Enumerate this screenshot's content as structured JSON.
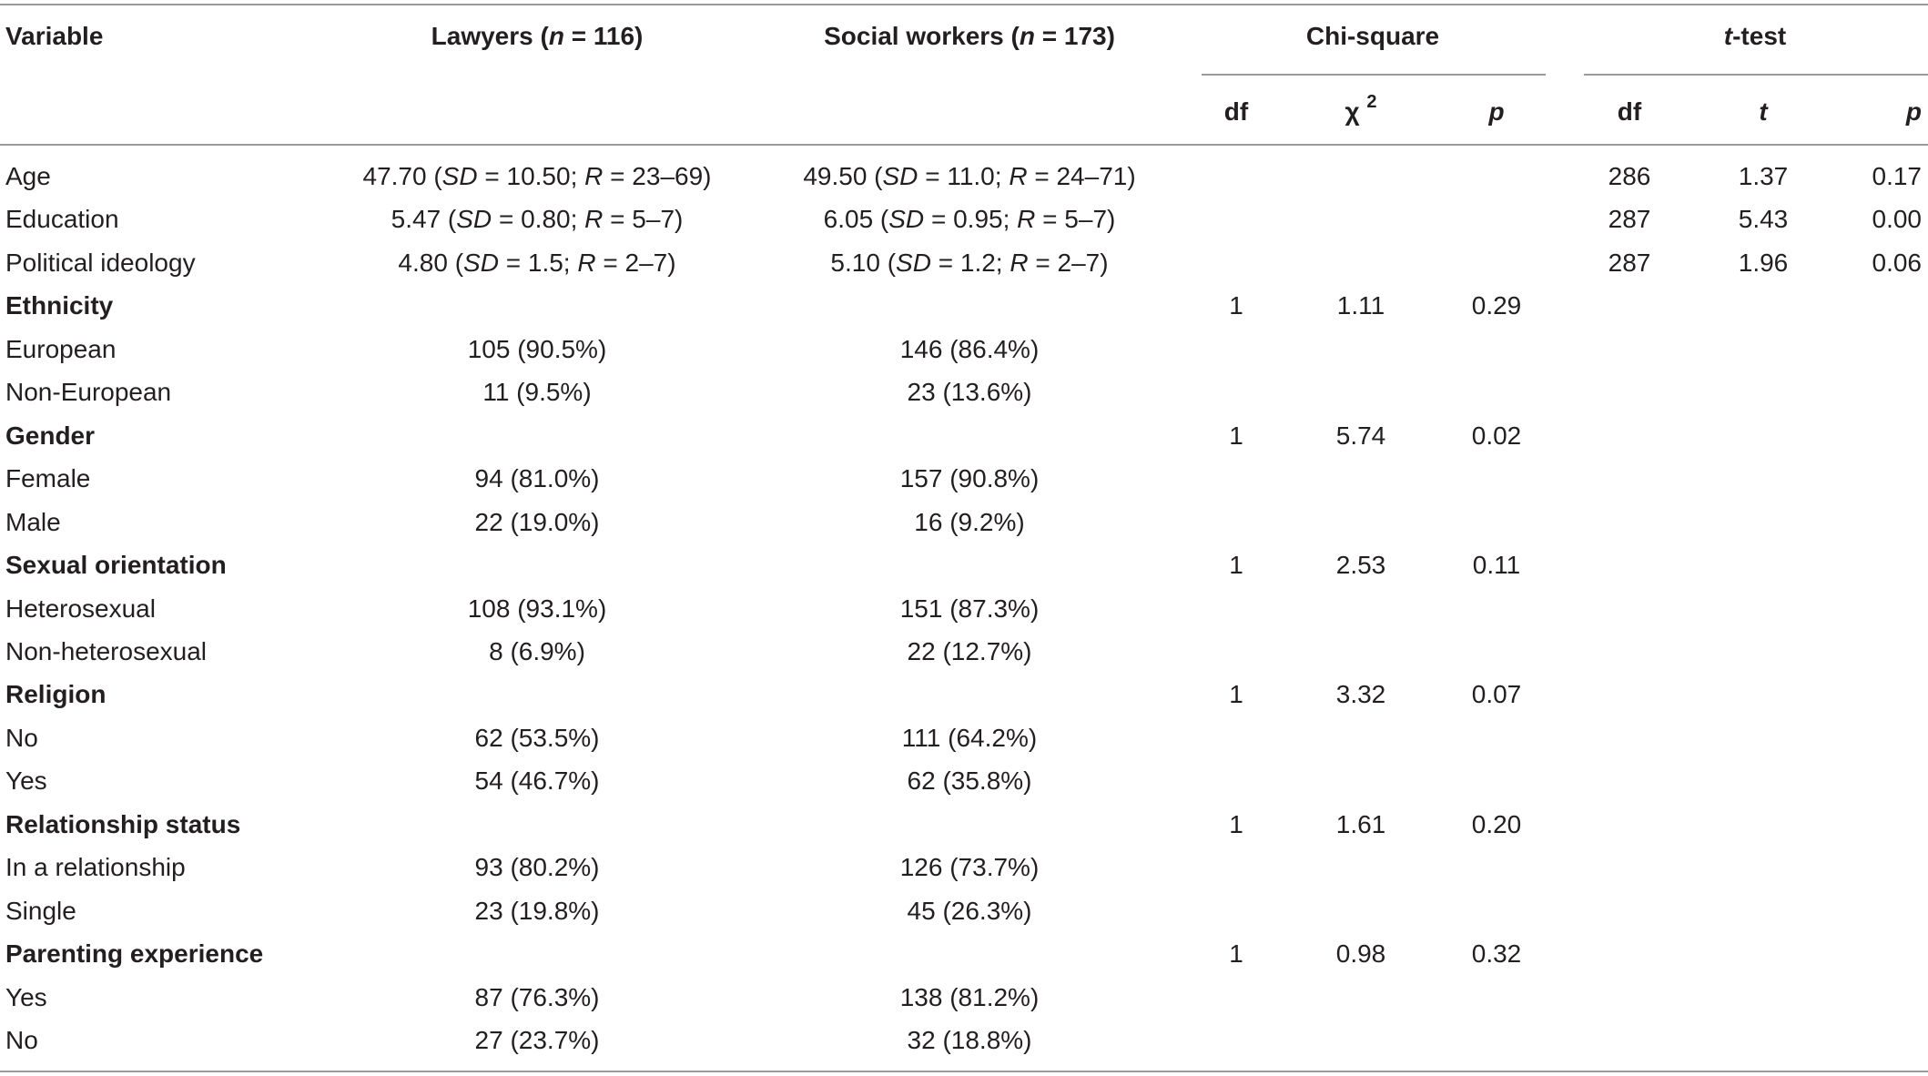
{
  "headers": {
    "variable": "Variable",
    "lawyers": {
      "pre": "Lawyers (",
      "n": "n",
      "post": " = 116)"
    },
    "social": {
      "pre": "Social workers (",
      "n": "n",
      "post": " = 173)"
    },
    "chi": "Chi-square",
    "ttest": {
      "t": "t",
      "rest": "-test"
    },
    "chi_df": "df",
    "chi_stat": {
      "base": "χ",
      "sup": "2"
    },
    "chi_p": "p",
    "t_df": "df",
    "t_t": "t",
    "t_p": "p"
  },
  "rows": [
    {
      "label": "Age",
      "bold": false,
      "lawyers": {
        "mean": "47.70",
        "sd": "10.50",
        "range": "23–69"
      },
      "social": {
        "mean": "49.50",
        "sd": "11.0",
        "range": "24–71"
      },
      "chi_df": "",
      "chi_stat": "",
      "chi_p": "",
      "t_df": "286",
      "t_t": "1.37",
      "t_p": "0.17"
    },
    {
      "label": "Education",
      "bold": false,
      "lawyers": {
        "mean": "5.47",
        "sd": "0.80",
        "range": "5–7"
      },
      "social": {
        "mean": "6.05",
        "sd": "0.95",
        "range": "5–7"
      },
      "chi_df": "",
      "chi_stat": "",
      "chi_p": "",
      "t_df": "287",
      "t_t": "5.43",
      "t_p": "0.00"
    },
    {
      "label": "Political ideology",
      "bold": false,
      "lawyers": {
        "mean": "4.80",
        "sd": "1.5",
        "range": "2–7"
      },
      "social": {
        "mean": "5.10",
        "sd": "1.2",
        "range": "2–7"
      },
      "chi_df": "",
      "chi_stat": "",
      "chi_p": "",
      "t_df": "287",
      "t_t": "1.96",
      "t_p": "0.06"
    },
    {
      "label": "Ethnicity",
      "bold": true,
      "lawyers": "",
      "social": "",
      "chi_df": "1",
      "chi_stat": "1.11",
      "chi_p": "0.29",
      "t_df": "",
      "t_t": "",
      "t_p": ""
    },
    {
      "label": "European",
      "bold": false,
      "lawyers": "105 (90.5%)",
      "social": "146 (86.4%)",
      "chi_df": "",
      "chi_stat": "",
      "chi_p": "",
      "t_df": "",
      "t_t": "",
      "t_p": ""
    },
    {
      "label": "Non-European",
      "bold": false,
      "lawyers": "11 (9.5%)",
      "social": "23 (13.6%)",
      "chi_df": "",
      "chi_stat": "",
      "chi_p": "",
      "t_df": "",
      "t_t": "",
      "t_p": ""
    },
    {
      "label": "Gender",
      "bold": true,
      "lawyers": "",
      "social": "",
      "chi_df": "1",
      "chi_stat": "5.74",
      "chi_p": "0.02",
      "t_df": "",
      "t_t": "",
      "t_p": ""
    },
    {
      "label": "Female",
      "bold": false,
      "lawyers": "94 (81.0%)",
      "social": "157 (90.8%)",
      "chi_df": "",
      "chi_stat": "",
      "chi_p": "",
      "t_df": "",
      "t_t": "",
      "t_p": ""
    },
    {
      "label": "Male",
      "bold": false,
      "lawyers": "22 (19.0%)",
      "social": "16 (9.2%)",
      "chi_df": "",
      "chi_stat": "",
      "chi_p": "",
      "t_df": "",
      "t_t": "",
      "t_p": ""
    },
    {
      "label": "Sexual orientation",
      "bold": true,
      "lawyers": "",
      "social": "",
      "chi_df": "1",
      "chi_stat": "2.53",
      "chi_p": "0.11",
      "t_df": "",
      "t_t": "",
      "t_p": ""
    },
    {
      "label": "Heterosexual",
      "bold": false,
      "lawyers": "108 (93.1%)",
      "social": "151 (87.3%)",
      "chi_df": "",
      "chi_stat": "",
      "chi_p": "",
      "t_df": "",
      "t_t": "",
      "t_p": ""
    },
    {
      "label": "Non-heterosexual",
      "bold": false,
      "lawyers": "8 (6.9%)",
      "social": "22 (12.7%)",
      "chi_df": "",
      "chi_stat": "",
      "chi_p": "",
      "t_df": "",
      "t_t": "",
      "t_p": ""
    },
    {
      "label": "Religion",
      "bold": true,
      "lawyers": "",
      "social": "",
      "chi_df": "1",
      "chi_stat": "3.32",
      "chi_p": "0.07",
      "t_df": "",
      "t_t": "",
      "t_p": ""
    },
    {
      "label": "No",
      "bold": false,
      "lawyers": "62 (53.5%)",
      "social": "111 (64.2%)",
      "chi_df": "",
      "chi_stat": "",
      "chi_p": "",
      "t_df": "",
      "t_t": "",
      "t_p": ""
    },
    {
      "label": "Yes",
      "bold": false,
      "lawyers": "54 (46.7%)",
      "social": "62 (35.8%)",
      "chi_df": "",
      "chi_stat": "",
      "chi_p": "",
      "t_df": "",
      "t_t": "",
      "t_p": ""
    },
    {
      "label": "Relationship status",
      "bold": true,
      "lawyers": "",
      "social": "",
      "chi_df": "1",
      "chi_stat": "1.61",
      "chi_p": "0.20",
      "t_df": "",
      "t_t": "",
      "t_p": ""
    },
    {
      "label": "In a relationship",
      "bold": false,
      "lawyers": "93 (80.2%)",
      "social": "126 (73.7%)",
      "chi_df": "",
      "chi_stat": "",
      "chi_p": "",
      "t_df": "",
      "t_t": "",
      "t_p": ""
    },
    {
      "label": "Single",
      "bold": false,
      "lawyers": "23 (19.8%)",
      "social": "45 (26.3%)",
      "chi_df": "",
      "chi_stat": "",
      "chi_p": "",
      "t_df": "",
      "t_t": "",
      "t_p": ""
    },
    {
      "label": "Parenting experience",
      "bold": true,
      "lawyers": "",
      "social": "",
      "chi_df": "1",
      "chi_stat": "0.98",
      "chi_p": "0.32",
      "t_df": "",
      "t_t": "",
      "t_p": ""
    },
    {
      "label": "Yes",
      "bold": false,
      "lawyers": "87 (76.3%)",
      "social": "138 (81.2%)",
      "chi_df": "",
      "chi_stat": "",
      "chi_p": "",
      "t_df": "",
      "t_t": "",
      "t_p": ""
    },
    {
      "label": "No",
      "bold": false,
      "lawyers": "27 (23.7%)",
      "social": "32 (18.8%)",
      "chi_df": "",
      "chi_stat": "",
      "chi_p": "",
      "t_df": "",
      "t_t": "",
      "t_p": ""
    }
  ]
}
